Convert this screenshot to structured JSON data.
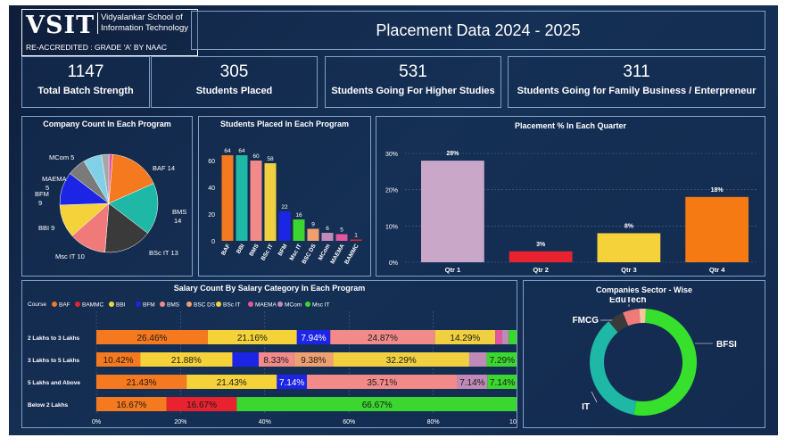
{
  "header": {
    "logo_text": "VSIT",
    "institute_line1": "Vidyalankar School of",
    "institute_line2": "Information Technology",
    "accreditation": "RE-ACCREDITED : GRADE 'A' BY NAAC",
    "title": "Placement Data 2024 - 2025"
  },
  "kpis": [
    {
      "value": "1147",
      "label": "Total Batch Strength"
    },
    {
      "value": "305",
      "label": "Students Placed"
    },
    {
      "value": "531",
      "label": "Students Going For Higher Studies"
    },
    {
      "value": "311",
      "label": "Students Going for Family Business / Enterpreneur"
    }
  ],
  "colors": {
    "BAF": "#f5791f",
    "BAMMC": "#e8232f",
    "BBI": "#f5d23a",
    "BFM": "#1c25e6",
    "BMS": "#f28a8a",
    "BSC DS": "#f0a070",
    "BSc IT": "#f0d040",
    "MAEMA": "#e3559d",
    "MCom": "#c08ab8",
    "Msc IT": "#3bd62f",
    "BFSI": "#36e02c",
    "IT": "#1fb7a6",
    "FMCG": "#3a3a3a",
    "EduTech": "#f07a7a",
    "EduTech2": "#f2c6a0"
  },
  "chart_data": [
    {
      "type": "pie",
      "title": "Company Count In Each Program",
      "categories": [
        "BAF",
        "BMS",
        "BSc IT",
        "Msc IT",
        "BBI",
        "BFM",
        "MAEMA",
        "MCom",
        "BSC DS",
        "BAMMC"
      ],
      "values": [
        14,
        14,
        13,
        10,
        9,
        9,
        5,
        5,
        2,
        1
      ],
      "labels": [
        "BAF 14",
        "BMS 14",
        "BSc IT 13",
        "Msc IT 10",
        "BBI 9",
        "BFM 9",
        "MAEMA 5",
        "MCom 5"
      ]
    },
    {
      "type": "bar",
      "title": "Students Placed In Each Program",
      "categories": [
        "BAF",
        "BBI",
        "BMS",
        "BSc IT",
        "BFM",
        "Msc IT",
        "BSC DS",
        "MCom",
        "MAEMA",
        "BAMMC"
      ],
      "values": [
        64,
        64,
        60,
        58,
        22,
        16,
        9,
        6,
        5,
        1
      ],
      "yticks": [
        "0",
        "20",
        "40",
        "60"
      ],
      "ylim": [
        0,
        70
      ]
    },
    {
      "type": "bar",
      "title": "Placement % In Each Quarter",
      "categories": [
        "Qtr 1",
        "Qtr 2",
        "Qtr 3",
        "Qtr 4"
      ],
      "values": [
        28,
        3,
        8,
        18
      ],
      "data_labels": [
        "28%",
        "3%",
        "8%",
        "18%"
      ],
      "bar_colors": [
        "#c9a7c9",
        "#e8232f",
        "#f5d23a",
        "#f57a14"
      ],
      "yticks": [
        "0%",
        "10%",
        "20%",
        "30%"
      ],
      "ylim": [
        0,
        30
      ]
    },
    {
      "type": "bar",
      "orientation": "horizontal-stacked-100",
      "title": "Salary Count By Salary Category In Each Program",
      "legend_title": "Course",
      "legend": [
        "BAF",
        "BAMMC",
        "BBI",
        "BFM",
        "BMS",
        "BSC DS",
        "BSc IT",
        "MAEMA",
        "MCom",
        "Msc IT"
      ],
      "categories": [
        "2 Lakhs to 3 Lakhs",
        "3 Lakhs to 5 Lakhs",
        "5 Lakhs and Above",
        "Below 2 Lakhs"
      ],
      "rows": [
        {
          "segments": [
            {
              "course": "BAF",
              "value": 26.46,
              "label": "26.46%"
            },
            {
              "course": "BBI",
              "value": 21.16,
              "label": "21.16%"
            },
            {
              "course": "BFM",
              "value": 7.94,
              "label": "7.94%"
            },
            {
              "course": "BMS",
              "value": 24.87,
              "label": "24.87%"
            },
            {
              "course": "BSc IT",
              "value": 14.29,
              "label": "14.29%"
            },
            {
              "course": "MAEMA",
              "value": 1.6,
              "label": ""
            },
            {
              "course": "MCom",
              "value": 1.6,
              "label": ""
            },
            {
              "course": "Msc IT",
              "value": 2.08,
              "label": ""
            }
          ]
        },
        {
          "segments": [
            {
              "course": "BAF",
              "value": 10.42,
              "label": "10.42%"
            },
            {
              "course": "BBI",
              "value": 21.88,
              "label": "21.88%"
            },
            {
              "course": "BFM",
              "value": 6.25,
              "label": ""
            },
            {
              "course": "BMS",
              "value": 8.33,
              "label": "8.33%"
            },
            {
              "course": "BSC DS",
              "value": 9.38,
              "label": "9.38%"
            },
            {
              "course": "BSc IT",
              "value": 32.29,
              "label": "32.29%"
            },
            {
              "course": "MCom",
              "value": 4.16,
              "label": ""
            },
            {
              "course": "Msc IT",
              "value": 7.29,
              "label": "7.29%"
            }
          ]
        },
        {
          "segments": [
            {
              "course": "BAF",
              "value": 21.43,
              "label": "21.43%"
            },
            {
              "course": "BBI",
              "value": 21.43,
              "label": "21.43%"
            },
            {
              "course": "BFM",
              "value": 7.14,
              "label": "7.14%"
            },
            {
              "course": "BMS",
              "value": 35.71,
              "label": "35.71%"
            },
            {
              "course": "MCom",
              "value": 7.14,
              "label": "7.14%"
            },
            {
              "course": "Msc IT",
              "value": 7.14,
              "label": "7.14%"
            }
          ]
        },
        {
          "segments": [
            {
              "course": "BAF",
              "value": 16.67,
              "label": "16.67%"
            },
            {
              "course": "BAMMC",
              "value": 16.67,
              "label": "16.67%"
            },
            {
              "course": "Msc IT",
              "value": 66.67,
              "label": "66.67%"
            }
          ]
        }
      ],
      "xticks": [
        "0%",
        "20%",
        "40%",
        "60%",
        "80%",
        "100%"
      ],
      "xlim": [
        0,
        100
      ]
    },
    {
      "type": "pie",
      "subtype": "donut",
      "title": "Companies Sector - Wise",
      "categories": [
        "BFSI",
        "IT",
        "FMCG",
        "EduTech",
        "Other"
      ],
      "values": [
        52,
        36,
        5,
        5,
        2
      ],
      "labels": [
        "BFSI",
        "IT",
        "FMCG",
        "EduTech",
        ""
      ]
    }
  ]
}
